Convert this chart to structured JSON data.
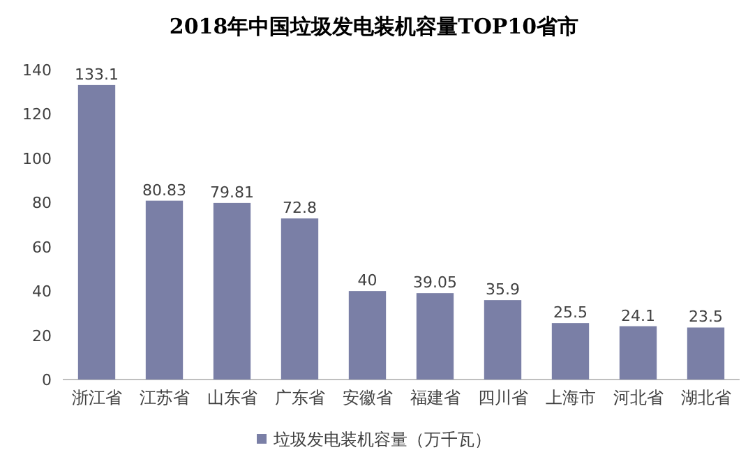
{
  "chart_data": {
    "type": "bar",
    "title": "2018年中国垃圾发电装机容量TOP10省市",
    "categories": [
      "浙江省",
      "江苏省",
      "山东省",
      "广东省",
      "安徽省",
      "福建省",
      "四川省",
      "上海市",
      "河北省",
      "湖北省"
    ],
    "series": [
      {
        "name": "垃圾发电装机容量（万千瓦）",
        "color": "#7a7fa6",
        "values": [
          133.1,
          80.83,
          79.81,
          72.8,
          40,
          39.05,
          35.9,
          25.5,
          24.1,
          23.5
        ]
      }
    ],
    "ylim": [
      0,
      140
    ],
    "yticks": [
      0,
      20,
      40,
      60,
      80,
      100,
      120,
      140
    ],
    "data_labels": true,
    "legend": "bottom"
  }
}
